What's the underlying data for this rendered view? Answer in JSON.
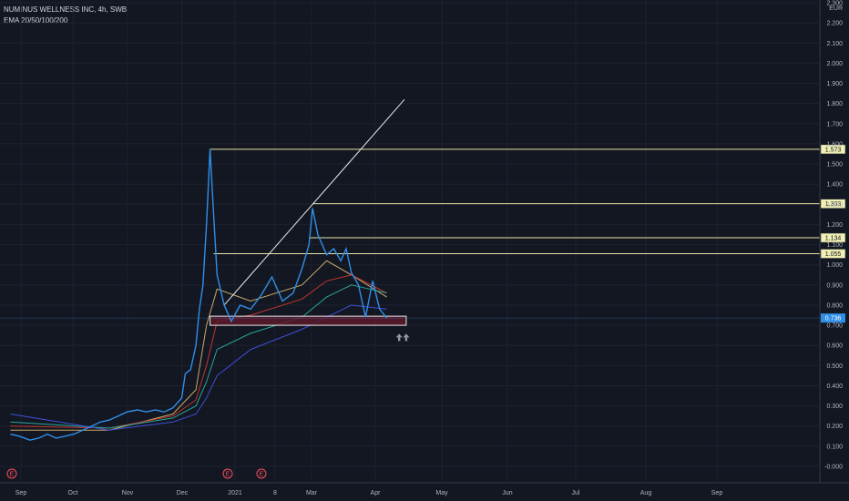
{
  "header": {
    "symbol_line": "NUMINUS WELLNESS INC, 4h, SWB",
    "indicator_line": "EMA 20/50/100/200"
  },
  "chart_data": {
    "type": "line",
    "currency": "EUR",
    "ylim": [
      -0.05,
      2.3
    ],
    "y_ticks": [
      "2.300",
      "2.200",
      "2.100",
      "2.000",
      "1.900",
      "1.800",
      "1.700",
      "1.600",
      "1.500",
      "1.400",
      "1.300",
      "1.200",
      "1.100",
      "1.000",
      "0.900",
      "0.800",
      "0.700",
      "0.600",
      "0.500",
      "0.400",
      "0.300",
      "0.200",
      "0.100",
      "-0.000"
    ],
    "x_ticks": [
      "Sep",
      "Oct",
      "Nov",
      "Dec",
      "2021",
      "8",
      "Mar",
      "Apr",
      "May",
      "Jun",
      "Jul",
      "Aug",
      "Sep"
    ],
    "price_series": {
      "name": "price",
      "points": [
        [
          "Aug 25",
          0.16
        ],
        [
          "Aug 30",
          0.15
        ],
        [
          "Sep 5",
          0.13
        ],
        [
          "Sep 10",
          0.14
        ],
        [
          "Sep 15",
          0.16
        ],
        [
          "Sep 20",
          0.14
        ],
        [
          "Sep 25",
          0.15
        ],
        [
          "Sep 30",
          0.16
        ],
        [
          "Oct 5",
          0.18
        ],
        [
          "Oct 10",
          0.2
        ],
        [
          "Oct 15",
          0.22
        ],
        [
          "Oct 20",
          0.23
        ],
        [
          "Oct 25",
          0.25
        ],
        [
          "Oct 30",
          0.27
        ],
        [
          "Nov 5",
          0.28
        ],
        [
          "Nov 10",
          0.27
        ],
        [
          "Nov 15",
          0.28
        ],
        [
          "Nov 20",
          0.27
        ],
        [
          "Nov 25",
          0.29
        ],
        [
          "Nov 30",
          0.34
        ],
        [
          "Dec 2",
          0.46
        ],
        [
          "Dec 5",
          0.48
        ],
        [
          "Dec 8",
          0.6
        ],
        [
          "Dec 10",
          0.78
        ],
        [
          "Dec 12",
          0.9
        ],
        [
          "Dec 14",
          1.2
        ],
        [
          "Dec 16",
          1.573
        ],
        [
          "Dec 18",
          1.25
        ],
        [
          "Dec 20",
          0.95
        ],
        [
          "Dec 24",
          0.8
        ],
        [
          "Dec 28",
          0.72
        ],
        [
          "Jan 2",
          0.8
        ],
        [
          "Jan 8",
          0.78
        ],
        [
          "Jan 14",
          0.85
        ],
        [
          "Jan 20",
          0.94
        ],
        [
          "Jan 26",
          0.82
        ],
        [
          "Feb 1",
          0.86
        ],
        [
          "Feb 6",
          0.98
        ],
        [
          "Feb 10",
          1.1
        ],
        [
          "Feb 12",
          1.28
        ],
        [
          "Feb 15",
          1.15
        ],
        [
          "Feb 20",
          1.05
        ],
        [
          "Feb 24",
          1.08
        ],
        [
          "Feb 28",
          1.02
        ],
        [
          "Mar 3",
          1.08
        ],
        [
          "Mar 6",
          0.96
        ],
        [
          "Mar 10",
          0.9
        ],
        [
          "Mar 14",
          0.74
        ],
        [
          "Mar 18",
          0.92
        ],
        [
          "Mar 22",
          0.78
        ],
        [
          "Mar 26",
          0.736
        ]
      ]
    },
    "ema_series": [
      {
        "name": "EMA 20",
        "color": "#c8a96a",
        "points": [
          [
            "Aug 25",
            0.18
          ],
          [
            "Oct 20",
            0.18
          ],
          [
            "Nov 25",
            0.26
          ],
          [
            "Dec 8",
            0.38
          ],
          [
            "Dec 14",
            0.7
          ],
          [
            "Dec 20",
            0.88
          ],
          [
            "Jan 8",
            0.82
          ],
          [
            "Feb 6",
            0.9
          ],
          [
            "Feb 20",
            1.02
          ],
          [
            "Mar 6",
            0.95
          ],
          [
            "Mar 26",
            0.84
          ]
        ]
      },
      {
        "name": "EMA 50",
        "color": "#c2362f",
        "points": [
          [
            "Aug 25",
            0.2
          ],
          [
            "Oct 20",
            0.19
          ],
          [
            "Nov 25",
            0.25
          ],
          [
            "Dec 8",
            0.33
          ],
          [
            "Dec 14",
            0.5
          ],
          [
            "Dec 20",
            0.72
          ],
          [
            "Jan 8",
            0.75
          ],
          [
            "Feb 6",
            0.83
          ],
          [
            "Feb 20",
            0.92
          ],
          [
            "Mar 6",
            0.95
          ],
          [
            "Mar 26",
            0.86
          ]
        ]
      },
      {
        "name": "EMA 100",
        "color": "#26a69a",
        "points": [
          [
            "Aug 25",
            0.22
          ],
          [
            "Oct 20",
            0.19
          ],
          [
            "Nov 25",
            0.24
          ],
          [
            "Dec 8",
            0.3
          ],
          [
            "Dec 14",
            0.42
          ],
          [
            "Dec 20",
            0.58
          ],
          [
            "Jan 8",
            0.66
          ],
          [
            "Feb 6",
            0.74
          ],
          [
            "Feb 20",
            0.84
          ],
          [
            "Mar 6",
            0.9
          ],
          [
            "Mar 26",
            0.86
          ]
        ]
      },
      {
        "name": "EMA 200",
        "color": "#3f4fd8",
        "points": [
          [
            "Aug 25",
            0.26
          ],
          [
            "Oct 20",
            0.18
          ],
          [
            "Nov 25",
            0.22
          ],
          [
            "Dec 8",
            0.26
          ],
          [
            "Dec 14",
            0.34
          ],
          [
            "Dec 20",
            0.45
          ],
          [
            "Jan 8",
            0.58
          ],
          [
            "Feb 6",
            0.68
          ],
          [
            "Feb 20",
            0.74
          ],
          [
            "Mar 6",
            0.8
          ],
          [
            "Mar 26",
            0.78
          ]
        ]
      }
    ],
    "horizontal_levels": [
      {
        "price": 1.573,
        "label": "1.573",
        "start": "Dec 16"
      },
      {
        "price": 1.303,
        "label": "1.303",
        "start": "Feb 12"
      },
      {
        "price": 1.134,
        "label": "1.134",
        "start": "Feb 10"
      },
      {
        "price": 1.055,
        "label": "1.055",
        "start": "Dec 18"
      }
    ],
    "current_price": {
      "price": 0.736,
      "label": "0.736"
    },
    "trendline": {
      "from": [
        "Dec 24",
        0.8
      ],
      "to": [
        "Apr 5",
        1.82
      ]
    },
    "support_zone": {
      "from": "Dec 16",
      "to": "Apr 6",
      "low": 0.7,
      "high": 0.745
    },
    "earnings_markers": [
      "Aug 25",
      "Dec 24",
      "Jan 24"
    ],
    "arrows": [
      "Apr 2",
      "Apr 6"
    ],
    "grid": true
  }
}
